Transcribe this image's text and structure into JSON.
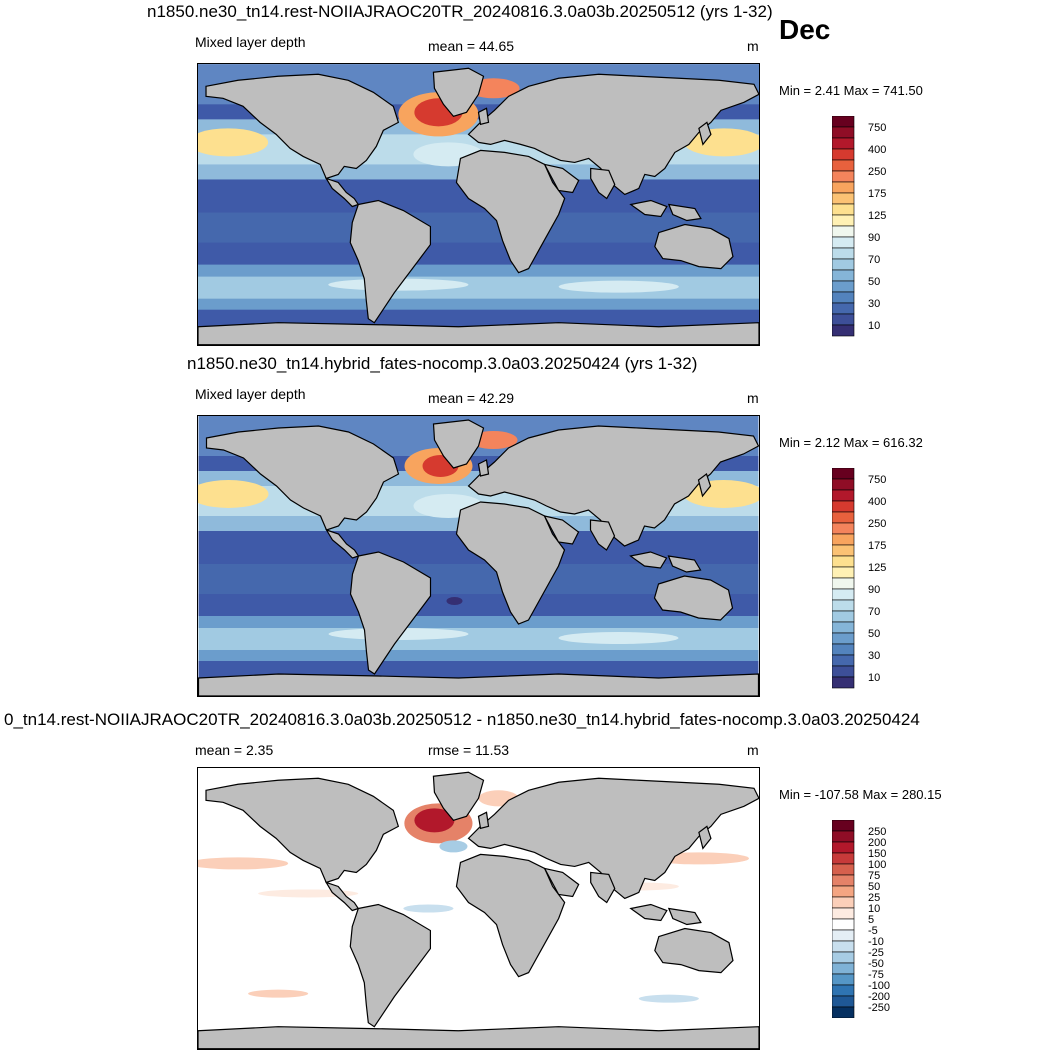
{
  "month": "Dec",
  "units": "m",
  "panels": [
    {
      "title": "n1850.ne30_tn14.rest-NOIIAJRAOC20TR_20240816.3.0a03b.20250512 (yrs 1-32)",
      "left_label": "Mixed layer depth",
      "stat_label": "mean =  44.65",
      "minmax": "Min =   2.41 Max = 741.50",
      "ocean_base": "#3f5aa8"
    },
    {
      "title": "n1850.ne30_tn14.hybrid_fates-nocomp.3.0a03.20250424 (yrs 1-32)",
      "left_label": "Mixed layer depth",
      "stat_label": "mean =  42.29",
      "minmax": "Min =   2.12 Max = 616.32",
      "ocean_base": "#3f5aa8"
    },
    {
      "title": "0_tn14.rest-NOIIAJRAOC20TR_20240816.3.0a03b.20250512 - n1850.ne30_tn14.hybrid_fates-nocomp.3.0a03.20250424",
      "left_label": "mean =   2.35",
      "stat_label": "rmse =  11.53",
      "minmax": "Min = -107.58 Max = 280.15",
      "ocean_base": "#ffffff"
    }
  ],
  "colorbar_mld": {
    "labels": [
      "750",
      "400",
      "250",
      "175",
      "125",
      "90",
      "70",
      "50",
      "30",
      "10"
    ],
    "colors": [
      "#67001f",
      "#8f0d26",
      "#b2182b",
      "#d63a2f",
      "#e8613d",
      "#f4845c",
      "#f8a45e",
      "#fbc274",
      "#fde08f",
      "#fff1b4",
      "#f0f7ee",
      "#d5ebf2",
      "#bcdcea",
      "#a1cae2",
      "#85b5d8",
      "#6b9dcc",
      "#5383bd",
      "#4568ad",
      "#3d4f98",
      "#352f73"
    ]
  },
  "colorbar_diff": {
    "labels": [
      "250",
      "200",
      "150",
      "100",
      "75",
      "50",
      "25",
      "10",
      "5",
      "-5",
      "-10",
      "-25",
      "-50",
      "-75",
      "-100",
      "-200",
      "-250"
    ],
    "colors": [
      "#67001f",
      "#8f0d26",
      "#b2182b",
      "#c73a3a",
      "#d6604d",
      "#e58268",
      "#f4a582",
      "#fbcfb9",
      "#fdebe1",
      "#ffffff",
      "#e4eef5",
      "#c8dfee",
      "#a7cce4",
      "#7fb2d6",
      "#5596c6",
      "#2f74b2",
      "#1f5896",
      "#053061"
    ]
  },
  "land_color": "#bebebe"
}
